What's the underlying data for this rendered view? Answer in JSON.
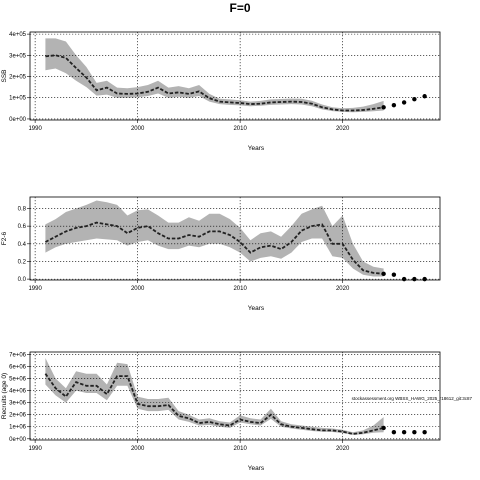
{
  "title": "F=0",
  "chart_data": [
    {
      "type": "line",
      "ylabel": "SSB",
      "xlabel": "Years",
      "xlim": [
        1989.5,
        2029.5
      ],
      "ylim": [
        -5000,
        410000
      ],
      "xticks": [
        1990,
        2000,
        2010,
        2020
      ],
      "yticks": [
        0,
        100000,
        200000,
        300000,
        400000
      ],
      "ytick_labels": [
        "0e+00",
        "1e+05",
        "2e+05",
        "3e+05",
        "4e+05"
      ],
      "grid": "dotted",
      "x": [
        1991,
        1992,
        1993,
        1994,
        1995,
        1996,
        1997,
        1998,
        1999,
        2000,
        2001,
        2002,
        2003,
        2004,
        2005,
        2006,
        2007,
        2008,
        2009,
        2010,
        2011,
        2012,
        2013,
        2014,
        2015,
        2016,
        2017,
        2018,
        2019,
        2020,
        2021,
        2022,
        2023,
        2024
      ],
      "median": [
        295000,
        300000,
        288000,
        240000,
        195000,
        135000,
        148000,
        120000,
        118000,
        120000,
        128000,
        148000,
        120000,
        125000,
        118000,
        130000,
        98000,
        82000,
        78000,
        75000,
        70000,
        72000,
        78000,
        80000,
        82000,
        80000,
        72000,
        55000,
        45000,
        40000,
        40000,
        42000,
        48000,
        55000
      ],
      "lower": [
        230000,
        238000,
        215000,
        180000,
        150000,
        110000,
        115000,
        100000,
        100000,
        102000,
        108000,
        120000,
        100000,
        105000,
        100000,
        108000,
        82000,
        70000,
        66000,
        64000,
        60000,
        62000,
        66000,
        68000,
        70000,
        68000,
        60000,
        45000,
        37000,
        33000,
        32000,
        33000,
        36000,
        40000
      ],
      "upper": [
        380000,
        380000,
        365000,
        300000,
        245000,
        170000,
        180000,
        148000,
        145000,
        150000,
        160000,
        180000,
        148000,
        155000,
        145000,
        160000,
        118000,
        95000,
        92000,
        88000,
        82000,
        85000,
        92000,
        94000,
        96000,
        95000,
        86000,
        68000,
        55000,
        50000,
        52000,
        58000,
        70000,
        85000
      ],
      "projection": {
        "x": [
          2024,
          2025,
          2026,
          2027,
          2028
        ],
        "y": [
          55000,
          65000,
          78000,
          93000,
          107000
        ]
      }
    },
    {
      "type": "line",
      "ylabel": "F2-6",
      "xlabel": "Years",
      "xlim": [
        1989.5,
        2029.5
      ],
      "ylim": [
        -0.01,
        0.93
      ],
      "xticks": [
        1990,
        2000,
        2010,
        2020
      ],
      "yticks": [
        0.0,
        0.2,
        0.4,
        0.6,
        0.8
      ],
      "ytick_labels": [
        "0.0",
        "0.2",
        "0.4",
        "0.6",
        "0.8"
      ],
      "grid": "dotted",
      "x": [
        1991,
        1992,
        1993,
        1994,
        1995,
        1996,
        1997,
        1998,
        1999,
        2000,
        2001,
        2002,
        2003,
        2004,
        2005,
        2006,
        2007,
        2008,
        2009,
        2010,
        2011,
        2012,
        2013,
        2014,
        2015,
        2016,
        2017,
        2018,
        2019,
        2020,
        2021,
        2022,
        2023,
        2024
      ],
      "median": [
        0.42,
        0.48,
        0.54,
        0.58,
        0.6,
        0.64,
        0.62,
        0.6,
        0.52,
        0.58,
        0.6,
        0.52,
        0.46,
        0.46,
        0.5,
        0.48,
        0.54,
        0.54,
        0.5,
        0.42,
        0.3,
        0.36,
        0.38,
        0.34,
        0.42,
        0.55,
        0.6,
        0.62,
        0.4,
        0.4,
        0.22,
        0.1,
        0.07,
        0.06
      ],
      "lower": [
        0.3,
        0.36,
        0.4,
        0.42,
        0.44,
        0.46,
        0.45,
        0.44,
        0.38,
        0.42,
        0.44,
        0.38,
        0.34,
        0.34,
        0.38,
        0.36,
        0.4,
        0.4,
        0.36,
        0.3,
        0.2,
        0.24,
        0.26,
        0.23,
        0.3,
        0.42,
        0.46,
        0.46,
        0.26,
        0.24,
        0.12,
        0.05,
        0.03,
        0.03
      ],
      "upper": [
        0.62,
        0.68,
        0.76,
        0.8,
        0.84,
        0.89,
        0.87,
        0.84,
        0.72,
        0.78,
        0.79,
        0.72,
        0.64,
        0.64,
        0.7,
        0.66,
        0.74,
        0.74,
        0.68,
        0.58,
        0.44,
        0.52,
        0.54,
        0.48,
        0.6,
        0.74,
        0.79,
        0.83,
        0.6,
        0.72,
        0.4,
        0.2,
        0.14,
        0.12
      ],
      "projection": {
        "x": [
          2024,
          2025,
          2026,
          2027,
          2028
        ],
        "y": [
          0.06,
          0.05,
          0.0,
          0.0,
          0.0
        ]
      }
    },
    {
      "type": "line",
      "ylabel": "Recruits (age 0)",
      "xlabel": "Years",
      "xlim": [
        1989.5,
        2029.5
      ],
      "ylim": [
        -100000,
        7200000
      ],
      "xticks": [
        1990,
        2000,
        2010,
        2020
      ],
      "yticks": [
        0,
        1000000,
        2000000,
        3000000,
        4000000,
        5000000,
        6000000,
        7000000
      ],
      "ytick_labels": [
        "0e+00",
        "1e+06",
        "2e+06",
        "3e+06",
        "4e+06",
        "5e+06",
        "6e+06",
        "7e+06"
      ],
      "grid": "dotted",
      "annotation": "stockassessment.org WBSS_HAWG_2025_r18612_git:3c87",
      "x": [
        1991,
        1992,
        1993,
        1994,
        1995,
        1996,
        1997,
        1998,
        1999,
        2000,
        2001,
        2002,
        2003,
        2004,
        2005,
        2006,
        2007,
        2008,
        2009,
        2010,
        2011,
        2012,
        2013,
        2014,
        2015,
        2016,
        2017,
        2018,
        2019,
        2020,
        2021,
        2022,
        2023,
        2024
      ],
      "median": [
        5400000,
        4200000,
        3500000,
        4700000,
        4400000,
        4400000,
        3700000,
        5200000,
        5200000,
        2900000,
        2700000,
        2700000,
        2800000,
        1900000,
        1700000,
        1300000,
        1400000,
        1200000,
        1100000,
        1600000,
        1400000,
        1300000,
        2000000,
        1200000,
        1000000,
        900000,
        800000,
        700000,
        700000,
        600000,
        400000,
        500000,
        700000,
        900000
      ],
      "lower": [
        4500000,
        3600000,
        3000000,
        4000000,
        3800000,
        3800000,
        3200000,
        4400000,
        4400000,
        2500000,
        2300000,
        2300000,
        2400000,
        1600000,
        1400000,
        1100000,
        1150000,
        1000000,
        900000,
        1350000,
        1200000,
        1100000,
        1650000,
        1000000,
        850000,
        750000,
        650000,
        580000,
        560000,
        480000,
        320000,
        380000,
        500000,
        550000
      ],
      "upper": [
        6700000,
        5000000,
        4200000,
        5600000,
        5400000,
        5400000,
        4500000,
        6300000,
        6200000,
        3500000,
        3300000,
        3300000,
        3400000,
        2300000,
        2000000,
        1600000,
        1700000,
        1450000,
        1350000,
        1950000,
        1700000,
        1600000,
        2500000,
        1450000,
        1200000,
        1100000,
        1000000,
        900000,
        850000,
        750000,
        550000,
        700000,
        1100000,
        1800000
      ],
      "projection": {
        "x": [
          2024,
          2025,
          2026,
          2027,
          2028
        ],
        "y": [
          900000,
          550000,
          550000,
          550000,
          550000
        ]
      }
    }
  ]
}
